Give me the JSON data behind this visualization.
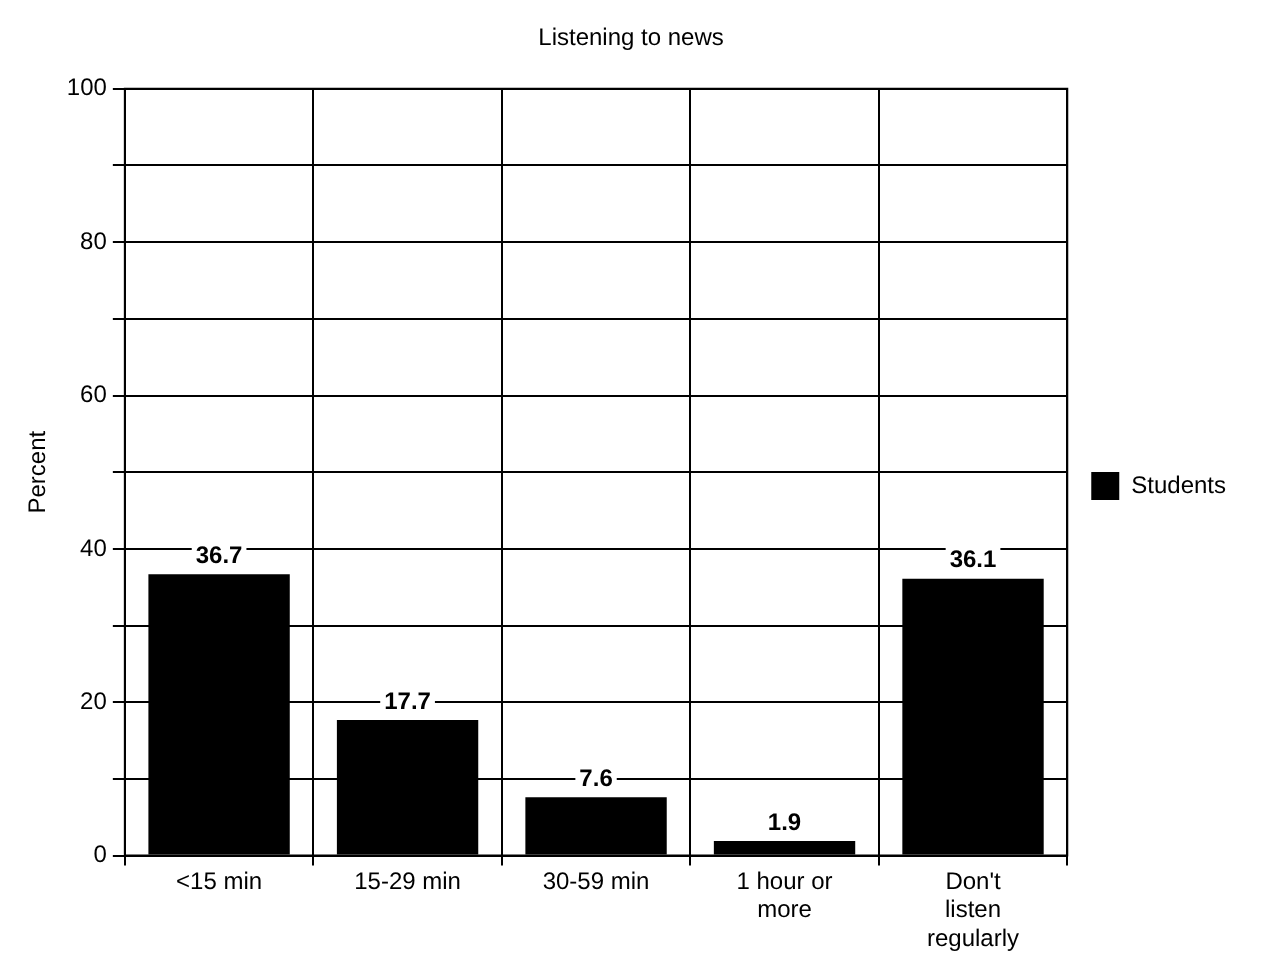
{
  "chart_data": {
    "type": "bar",
    "title": "Listening to news",
    "ylabel": "Percent",
    "categories": [
      "<15 min",
      "15-29 min",
      "30-59 min",
      "1 hour or more",
      "Don't listen regularly"
    ],
    "series": [
      {
        "name": "Students",
        "color": "#000000",
        "values": [
          36.7,
          17.7,
          7.6,
          1.9,
          36.1
        ]
      }
    ],
    "ylim": [
      0,
      100
    ],
    "yticks": [
      0,
      {
        "value": 10,
        "label": null
      },
      20,
      {
        "value": 30,
        "label": null
      },
      40,
      {
        "value": 50,
        "label": null
      },
      60,
      {
        "value": 70,
        "label": null
      },
      80,
      {
        "value": 90,
        "label": null
      },
      100
    ],
    "grid": true,
    "legend": "right",
    "data_labels": true
  }
}
